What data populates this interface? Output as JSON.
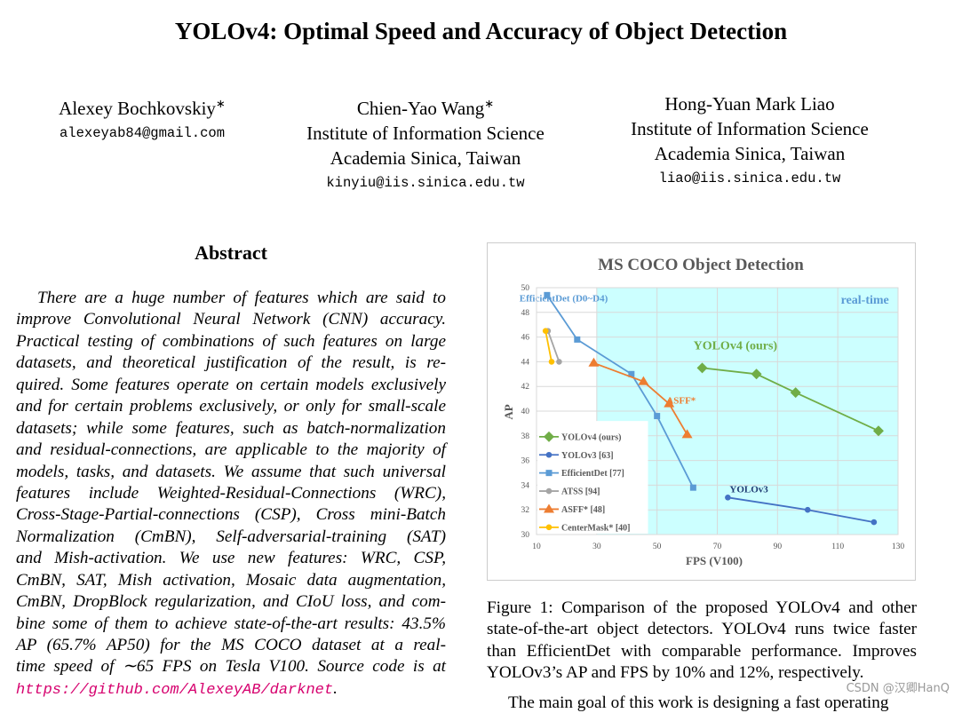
{
  "title": "YOLOv4: Optimal Speed and Accuracy of Object Detection",
  "authors": [
    {
      "name": "Alexey Bochkovskiy",
      "mark": "∗",
      "affiliation": [],
      "email": "alexeyab84@gmail.com"
    },
    {
      "name": "Chien-Yao Wang",
      "mark": "∗",
      "affiliation": [
        "Institute of Information Science",
        "Academia Sinica, Taiwan"
      ],
      "email": "kinyiu@iis.sinica.edu.tw"
    },
    {
      "name": "Hong-Yuan Mark Liao",
      "mark": "",
      "affiliation": [
        "Institute of Information Science",
        "Academia Sinica, Taiwan"
      ],
      "email": "liao@iis.sinica.edu.tw"
    }
  ],
  "abstract": {
    "heading": "Abstract",
    "lines": [
      "There are a huge number of features which are said to",
      "improve Convolutional Neural Network (CNN) accuracy.",
      "Practical testing of combinations of such features on large",
      "datasets, and theoretical justification of the result, is re-",
      "quired. Some features operate on certain models exclusively",
      "and for certain problems exclusively, or only for small-scale",
      "datasets; while some features, such as batch-normalization",
      "and residual-connections, are applicable to the majority of",
      "models, tasks, and datasets. We assume that such universal",
      "features include Weighted-Residual-Connections (WRC),",
      "Cross-Stage-Partial-connections (CSP), Cross mini-Batch",
      "Normalization (CmBN), Self-adversarial-training (SAT)",
      "and Mish-activation.  We use new features:  WRC, CSP,",
      "CmBN, SAT, Mish activation, Mosaic data augmentation,",
      "CmBN, DropBlock regularization, and CIoU loss, and com-",
      "bine some of them to achieve state-of-the-art results: 43.5%",
      "AP (65.7% AP50) for the MS COCO dataset at a real-",
      "time speed of ∼65 FPS on Tesla V100.  Source code is at"
    ],
    "url": "https://github.com/AlexeyAB/darknet",
    "url_suffix": "."
  },
  "figure_caption": [
    "Figure 1: Comparison of the proposed YOLOv4 and other",
    "state-of-the-art object detectors. YOLOv4 runs twice faster",
    "than EfficientDet with comparable performance. Improves",
    "YOLOv3’s AP and FPS by 10% and 12%, respectively."
  ],
  "next_paragraph_start": "The main goal of this work is designing a fast operating",
  "watermark": "CSDN @汉卿HanQ",
  "colors": {
    "url": "#d6006e",
    "realtime_bg": "#ccffff"
  },
  "chart_data": {
    "type": "line",
    "title": "MS COCO Object Detection",
    "xlabel": "FPS (V100)",
    "ylabel": "AP",
    "xlim": [
      10,
      130
    ],
    "ylim": [
      30,
      50
    ],
    "xticks": [
      10,
      30,
      50,
      70,
      90,
      110,
      130
    ],
    "yticks": [
      30,
      32,
      34,
      36,
      38,
      40,
      42,
      44,
      46,
      48,
      50
    ],
    "grid": true,
    "legend_placement": "bottom-left",
    "realtime_region": {
      "label": "real-time",
      "x_from": 30
    },
    "annotations": [
      {
        "text": "EfficientDet (D0~D4)",
        "x": 19,
        "y": 48.9,
        "color": "#5b9bd5"
      },
      {
        "text": "real-time",
        "x": 119,
        "y": 48.7,
        "color": "#5b9bd5"
      },
      {
        "text": "YOLOv4 (ours)",
        "x": 76,
        "y": 45,
        "color": "#70ad47"
      },
      {
        "text": "ASFF*",
        "x": 58,
        "y": 40.6,
        "color": "#ed7d31"
      },
      {
        "text": "YOLOv3",
        "x": 80.5,
        "y": 33.4,
        "color": "#1f3b73"
      }
    ],
    "series": [
      {
        "name": "YOLOv4 (ours)",
        "color": "#70ad47",
        "marker": "diamond",
        "x": [
          65,
          83,
          96,
          123.5
        ],
        "y": [
          43.5,
          43,
          41.5,
          38.4
        ]
      },
      {
        "name": "YOLOv3 [63]",
        "color": "#4472c4",
        "marker": "circle",
        "x": [
          73.5,
          100,
          122
        ],
        "y": [
          33,
          32,
          31
        ]
      },
      {
        "name": "EfficientDet [77]",
        "color": "#5b9bd5",
        "marker": "square",
        "x": [
          13.5,
          23.5,
          41.5,
          50,
          62
        ],
        "y": [
          49.4,
          45.8,
          43,
          39.6,
          33.8
        ]
      },
      {
        "name": "ATSS [94]",
        "color": "#a5a5a5",
        "marker": "circle",
        "x": [
          13.8,
          17.5
        ],
        "y": [
          46.5,
          44
        ]
      },
      {
        "name": "ASFF* [48]",
        "color": "#ed7d31",
        "marker": "triangle",
        "x": [
          29,
          45.5,
          54,
          60
        ],
        "y": [
          43.9,
          42.4,
          40.6,
          38.1
        ]
      },
      {
        "name": "CenterMask* [40]",
        "color": "#ffc000",
        "marker": "circle",
        "x": [
          13,
          15
        ],
        "y": [
          46.5,
          44
        ]
      }
    ]
  }
}
